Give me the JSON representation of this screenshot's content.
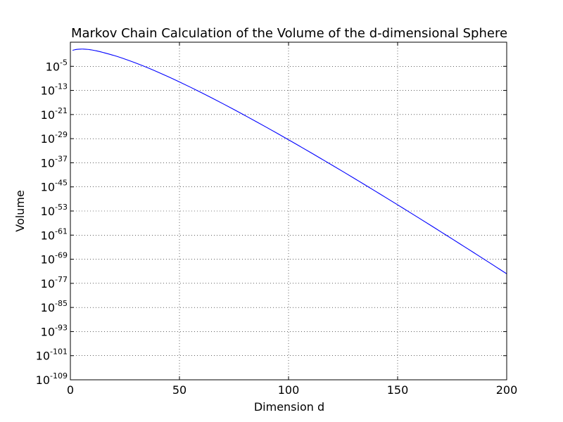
{
  "chart_data": {
    "type": "line",
    "title": "Markov Chain Calculation of the Volume of the d-dimensional Sphere",
    "xlabel": "Dimension d",
    "ylabel": "Volume",
    "xlim": [
      0,
      200
    ],
    "ylim_log10": [
      -109,
      3
    ],
    "yscale": "log",
    "grid": true,
    "x_ticks": [
      {
        "value": 0,
        "label": "0"
      },
      {
        "value": 50,
        "label": "50"
      },
      {
        "value": 100,
        "label": "100"
      },
      {
        "value": 150,
        "label": "150"
      },
      {
        "value": 200,
        "label": "200"
      }
    ],
    "y_ticks": [
      {
        "exponent": -5,
        "base": "10",
        "sup": "-5"
      },
      {
        "exponent": -13,
        "base": "10",
        "sup": "-13"
      },
      {
        "exponent": -21,
        "base": "10",
        "sup": "-21"
      },
      {
        "exponent": -29,
        "base": "10",
        "sup": "-29"
      },
      {
        "exponent": -37,
        "base": "10",
        "sup": "-37"
      },
      {
        "exponent": -45,
        "base": "10",
        "sup": "-45"
      },
      {
        "exponent": -53,
        "base": "10",
        "sup": "-53"
      },
      {
        "exponent": -61,
        "base": "10",
        "sup": "-61"
      },
      {
        "exponent": -69,
        "base": "10",
        "sup": "-69"
      },
      {
        "exponent": -77,
        "base": "10",
        "sup": "-77"
      },
      {
        "exponent": -85,
        "base": "10",
        "sup": "-85"
      },
      {
        "exponent": -93,
        "base": "10",
        "sup": "-93"
      },
      {
        "exponent": -101,
        "base": "10",
        "sup": "-101"
      },
      {
        "exponent": -109,
        "base": "10",
        "sup": "-109"
      }
    ],
    "series": [
      {
        "color": "#0000ff",
        "x": [
          1,
          2,
          3,
          4,
          5,
          6,
          8,
          10,
          12,
          15,
          20,
          25,
          30,
          35,
          40,
          45,
          50,
          55,
          60,
          65,
          70,
          75,
          80,
          85,
          90,
          95,
          100,
          105,
          110,
          115,
          120,
          125,
          130,
          135,
          140,
          145,
          150,
          155,
          160,
          165,
          170,
          175,
          180,
          185,
          190,
          195,
          200
        ],
        "log10_y": [
          0.301,
          0.497,
          0.622,
          0.693,
          0.721,
          0.714,
          0.609,
          0.405,
          0.121,
          -0.41,
          -1.41,
          -2.59,
          -3.91,
          -5.34,
          -6.88,
          -8.49,
          -10.18,
          -11.92,
          -13.71,
          -15.55,
          -17.43,
          -19.35,
          -21.3,
          -23.27,
          -25.28,
          -27.31,
          -29.37,
          -31.45,
          -33.55,
          -35.67,
          -37.8,
          -39.95,
          -42.12,
          -44.31,
          -46.51,
          -48.72,
          -50.95,
          -53.19,
          -55.44,
          -57.7,
          -59.98,
          -62.26,
          -64.56,
          -66.86,
          -69.17,
          -71.5,
          -73.83
        ]
      }
    ]
  }
}
